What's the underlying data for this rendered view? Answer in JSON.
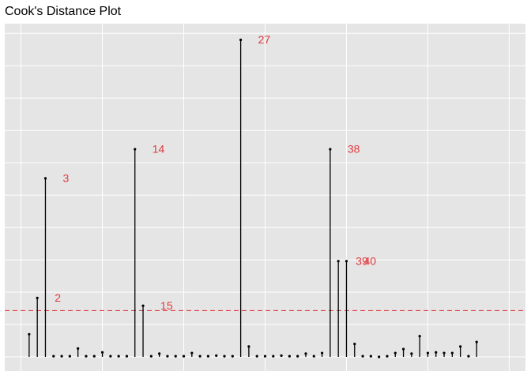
{
  "chart_data": {
    "type": "lollipop",
    "title": "Cook's Distance Plot",
    "x": [
      1,
      2,
      3,
      4,
      5,
      6,
      7,
      8,
      9,
      10,
      11,
      12,
      13,
      14,
      15,
      16,
      17,
      18,
      19,
      20,
      21,
      22,
      23,
      24,
      25,
      26,
      27,
      28,
      29,
      30,
      31,
      32,
      33,
      34,
      35,
      36,
      37,
      38,
      39,
      40,
      41,
      42,
      43,
      44,
      45,
      46,
      47,
      48,
      49,
      50,
      51,
      52,
      53,
      54,
      55,
      56
    ],
    "values": [
      0.035,
      0.091,
      0.276,
      0.001,
      0.001,
      0.001,
      0.013,
      0.001,
      0.001,
      0.007,
      0.001,
      0.001,
      0.001,
      0.321,
      0.079,
      0.001,
      0.005,
      0.001,
      0.001,
      0.001,
      0.006,
      0.001,
      0.001,
      0.002,
      0.001,
      0.001,
      0.49,
      0.016,
      0.001,
      0.001,
      0.001,
      0.002,
      0.001,
      0.001,
      0.005,
      0.001,
      0.006,
      0.321,
      0.148,
      0.148,
      0.02,
      0.001,
      0.001,
      0,
      0.001,
      0.006,
      0.012,
      0.005,
      0.032,
      0.006,
      0.007,
      0.006,
      0.006,
      0.016,
      0.001,
      0.023
    ],
    "color": "#000000",
    "label_color": "#e0393e",
    "threshold": 0.0714,
    "threshold_color": "#e0393e",
    "xlim": [
      -2,
      62
    ],
    "xticks": [
      0,
      10,
      20,
      30,
      40,
      50,
      60
    ],
    "ylim": [
      -0.022,
      0.515
    ],
    "yticks": [
      0,
      0.05,
      0.1,
      0.15,
      0.2,
      0.25,
      0.3,
      0.35,
      0.4,
      0.45,
      0.5
    ],
    "grid": true
  }
}
